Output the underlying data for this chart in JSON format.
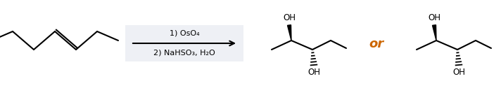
{
  "background_color": "#ffffff",
  "reaction_box_color": "#eef0f5",
  "text_color": "#000000",
  "or_color": "#cc6600",
  "reagent_line1": "1) OsO₄",
  "reagent_line2": "2) NaHSO₃, H₂O",
  "or_text": "or",
  "figsize": [
    7.12,
    1.26
  ],
  "dpi": 100
}
